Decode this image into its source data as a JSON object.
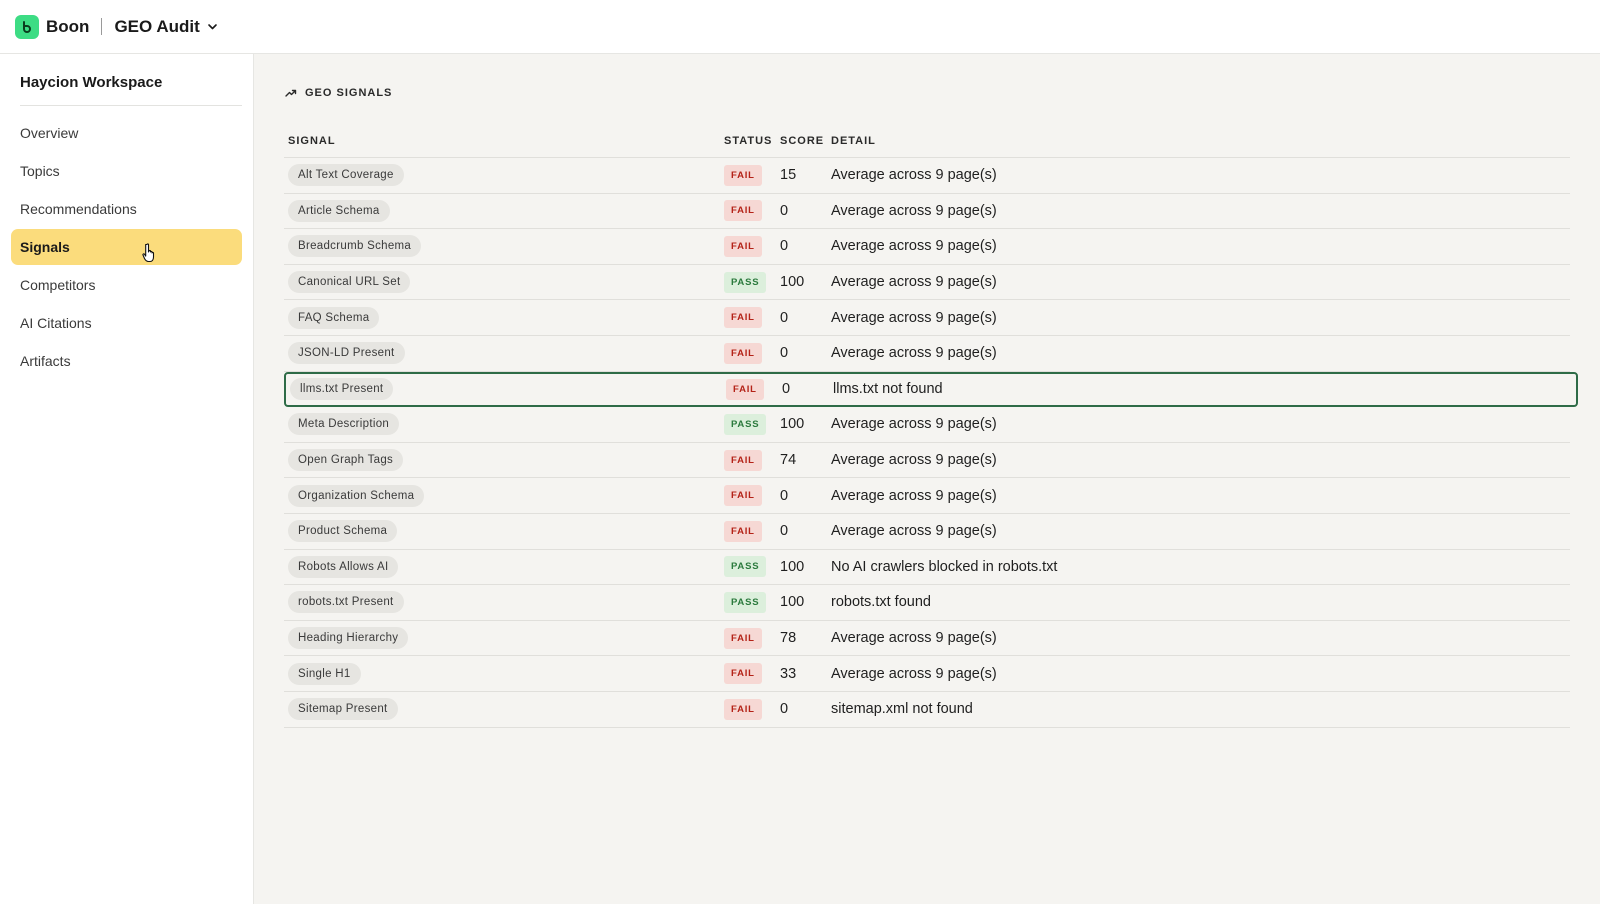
{
  "app": {
    "brand": "Boon",
    "project": "GEO Audit",
    "accent_color": "#3ddc84"
  },
  "sidebar": {
    "workspace": "Haycion Workspace",
    "items": [
      {
        "label": "Overview",
        "active": false
      },
      {
        "label": "Topics",
        "active": false
      },
      {
        "label": "Recommendations",
        "active": false
      },
      {
        "label": "Signals",
        "active": true
      },
      {
        "label": "Competitors",
        "active": false
      },
      {
        "label": "AI Citations",
        "active": false
      },
      {
        "label": "Artifacts",
        "active": false
      }
    ],
    "active_color": "#fbdc7c"
  },
  "main": {
    "section_title": "GEO SIGNALS",
    "columns": {
      "signal": "SIGNAL",
      "status": "STATUS",
      "score": "SCORE",
      "detail": "DETAIL"
    },
    "rows": [
      {
        "signal": "Alt Text Coverage",
        "status": "FAIL",
        "score": "15",
        "detail": "Average across 9 page(s)"
      },
      {
        "signal": "Article Schema",
        "status": "FAIL",
        "score": "0",
        "detail": "Average across 9 page(s)"
      },
      {
        "signal": "Breadcrumb Schema",
        "status": "FAIL",
        "score": "0",
        "detail": "Average across 9 page(s)"
      },
      {
        "signal": "Canonical URL Set",
        "status": "PASS",
        "score": "100",
        "detail": "Average across 9 page(s)"
      },
      {
        "signal": "FAQ Schema",
        "status": "FAIL",
        "score": "0",
        "detail": "Average across 9 page(s)"
      },
      {
        "signal": "JSON-LD Present",
        "status": "FAIL",
        "score": "0",
        "detail": "Average across 9 page(s)"
      },
      {
        "signal": "llms.txt Present",
        "status": "FAIL",
        "score": "0",
        "detail": "llms.txt not found",
        "selected": true
      },
      {
        "signal": "Meta Description",
        "status": "PASS",
        "score": "100",
        "detail": "Average across 9 page(s)"
      },
      {
        "signal": "Open Graph Tags",
        "status": "FAIL",
        "score": "74",
        "detail": "Average across 9 page(s)"
      },
      {
        "signal": "Organization Schema",
        "status": "FAIL",
        "score": "0",
        "detail": "Average across 9 page(s)"
      },
      {
        "signal": "Product Schema",
        "status": "FAIL",
        "score": "0",
        "detail": "Average across 9 page(s)"
      },
      {
        "signal": "Robots Allows AI",
        "status": "PASS",
        "score": "100",
        "detail": "No AI crawlers blocked in robots.txt"
      },
      {
        "signal": "robots.txt Present",
        "status": "PASS",
        "score": "100",
        "detail": "robots.txt found"
      },
      {
        "signal": "Heading Hierarchy",
        "status": "FAIL",
        "score": "78",
        "detail": "Average across 9 page(s)"
      },
      {
        "signal": "Single H1",
        "status": "FAIL",
        "score": "33",
        "detail": "Average across 9 page(s)"
      },
      {
        "signal": "Sitemap Present",
        "status": "FAIL",
        "score": "0",
        "detail": "sitemap.xml not found"
      }
    ],
    "status_colors": {
      "fail": "#b42318",
      "pass": "#2b7a3d"
    },
    "selected_outline_color": "#2e6b47"
  }
}
